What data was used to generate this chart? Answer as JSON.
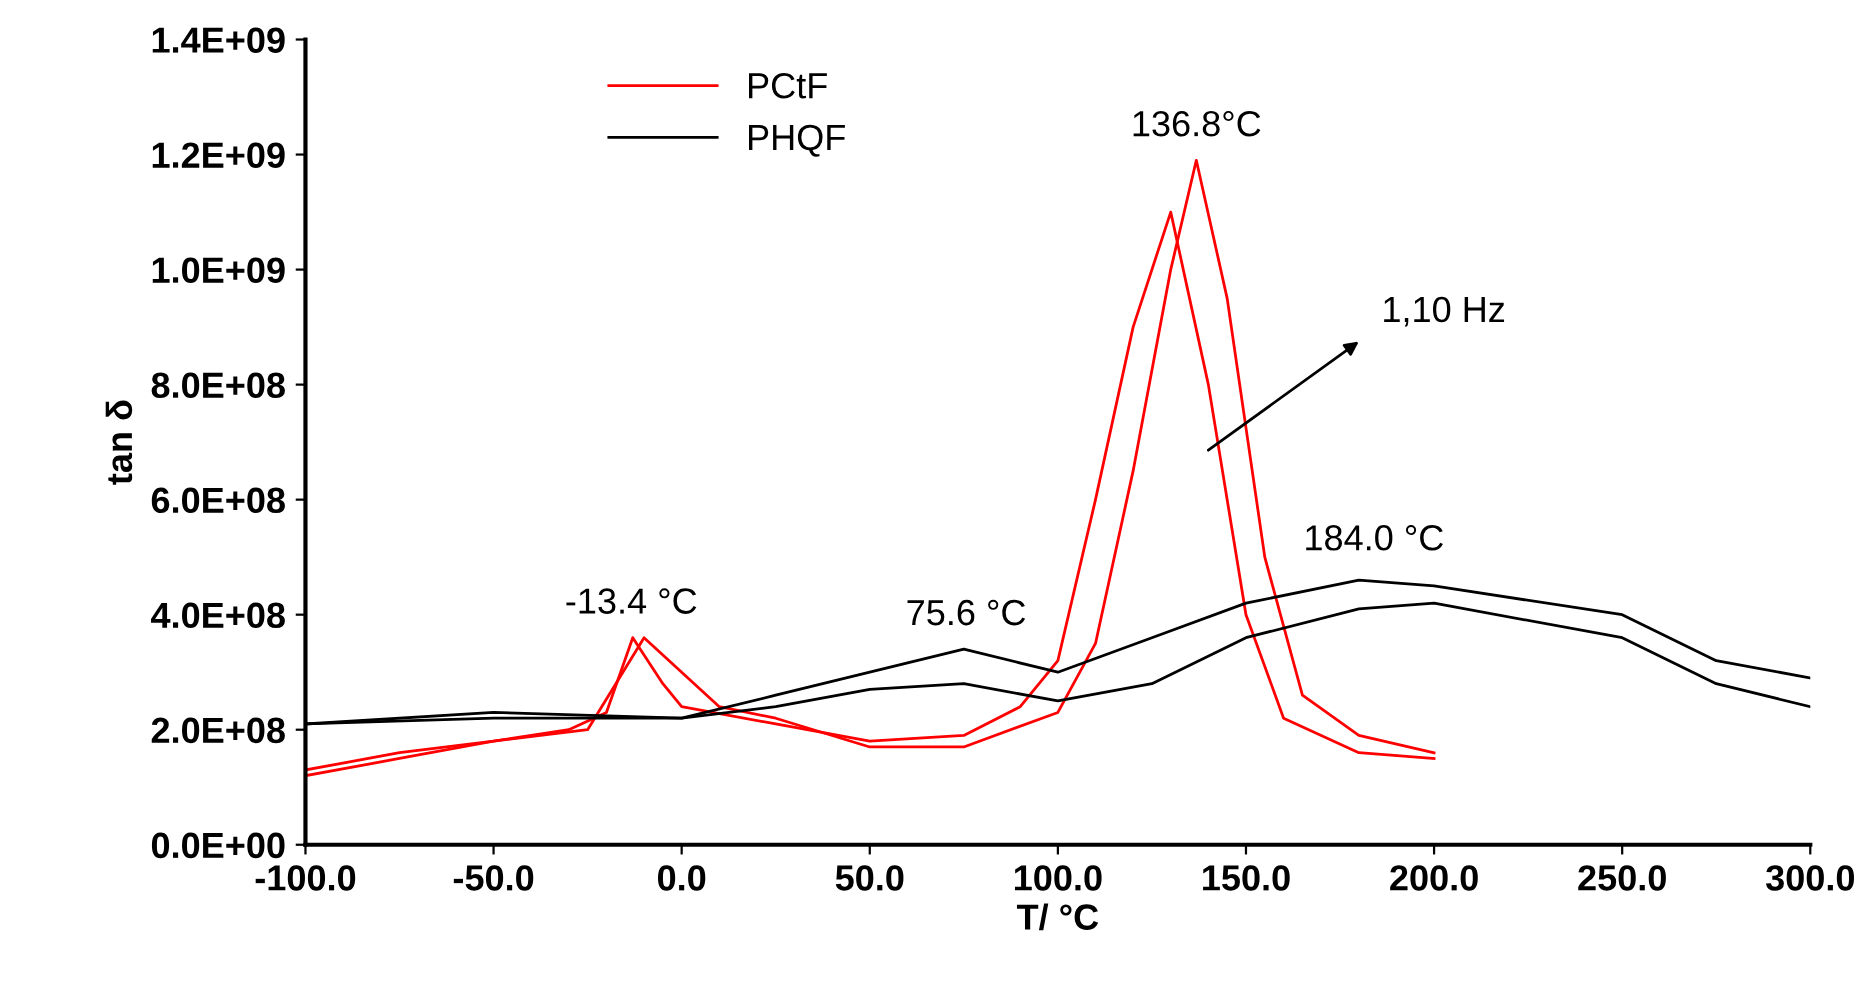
{
  "chart_data": {
    "type": "line",
    "xlabel": "T/ °C",
    "ylabel": "tan δ",
    "xlim": [
      -100,
      300
    ],
    "ylim": [
      0,
      1400000000
    ],
    "xticks": [
      {
        "value": -100,
        "label": "-100.0"
      },
      {
        "value": -50,
        "label": "-50.0"
      },
      {
        "value": 0,
        "label": "0.0"
      },
      {
        "value": 50,
        "label": "50.0"
      },
      {
        "value": 100,
        "label": "100.0"
      },
      {
        "value": 150,
        "label": "150.0"
      },
      {
        "value": 200,
        "label": "200.0"
      },
      {
        "value": 250,
        "label": "250.0"
      },
      {
        "value": 300,
        "label": "300.0"
      }
    ],
    "yticks": [
      {
        "value": 0,
        "label": "0.0E+00"
      },
      {
        "value": 200000000,
        "label": "2.0E+08"
      },
      {
        "value": 400000000,
        "label": "4.0E+08"
      },
      {
        "value": 600000000,
        "label": "6.0E+08"
      },
      {
        "value": 800000000,
        "label": "8.0E+08"
      },
      {
        "value": 1000000000,
        "label": "1.0E+09"
      },
      {
        "value": 1200000000,
        "label": "1.2E+09"
      },
      {
        "value": 1400000000,
        "label": "1.4E+09"
      }
    ],
    "grid": false,
    "legend": "top left",
    "marker": "none",
    "line_style": "solid",
    "series": [
      {
        "name": "PCtF",
        "color": "#ff0000",
        "x": [
          -100,
          -75,
          -50,
          -30,
          -20,
          -13,
          -5,
          0,
          25,
          50,
          75,
          90,
          100,
          110,
          120,
          130,
          140,
          150,
          160,
          180,
          200
        ],
        "values": [
          130000000,
          160000000,
          180000000,
          200000000,
          230000000,
          360000000,
          280000000,
          240000000,
          210000000,
          180000000,
          190000000,
          240000000,
          320000000,
          600000000,
          900000000,
          1100000000,
          800000000,
          400000000,
          220000000,
          160000000,
          150000000
        ]
      },
      {
        "color": "#ff0000",
        "x": [
          -100,
          -75,
          -50,
          -25,
          -10,
          0,
          10,
          25,
          50,
          75,
          100,
          110,
          120,
          130,
          136.8,
          145,
          155,
          165,
          180,
          200
        ],
        "values": [
          120000000,
          150000000,
          180000000,
          200000000,
          360000000,
          300000000,
          240000000,
          220000000,
          170000000,
          170000000,
          230000000,
          350000000,
          650000000,
          1000000000,
          1190000000,
          950000000,
          500000000,
          260000000,
          190000000,
          160000000
        ]
      },
      {
        "name": "PHQF",
        "color": "#000000",
        "x": [
          -100,
          -50,
          0,
          25,
          50,
          75,
          100,
          125,
          150,
          180,
          200,
          250,
          275,
          300
        ],
        "values": [
          210000000,
          230000000,
          220000000,
          260000000,
          300000000,
          340000000,
          300000000,
          360000000,
          420000000,
          460000000,
          450000000,
          400000000,
          320000000,
          290000000
        ]
      },
      {
        "color": "#000000",
        "x": [
          -100,
          -50,
          -20,
          0,
          25,
          50,
          75,
          100,
          125,
          150,
          180,
          200,
          250,
          275,
          300
        ],
        "values": [
          210000000,
          220000000,
          220000000,
          220000000,
          240000000,
          270000000,
          280000000,
          250000000,
          280000000,
          360000000,
          410000000,
          420000000,
          360000000,
          280000000,
          240000000
        ]
      }
    ],
    "annotations": [
      {
        "text": "-13.4 °C",
        "x": -13.4,
        "y": 360000000
      },
      {
        "text": "75.6 °C",
        "x": 75.6,
        "y": 340000000
      },
      {
        "text": "136.8°C",
        "x": 136.8,
        "y": 1190000000
      },
      {
        "text": "184.0 °C",
        "x": 184,
        "y": 470000000
      },
      "1,10 Hz"
    ]
  }
}
